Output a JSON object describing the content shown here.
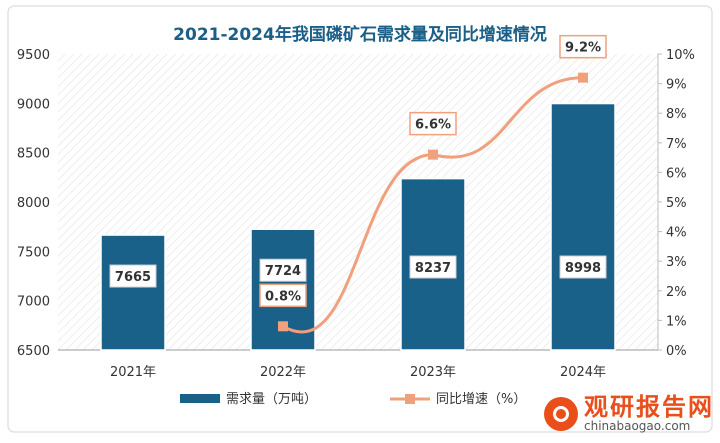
{
  "chart_data": {
    "type": "bar+line",
    "title": "2021-2024年我国磷矿石需求量及同比增速情况",
    "categories": [
      "2021年",
      "2022年",
      "2023年",
      "2024年"
    ],
    "series": [
      {
        "name": "需求量（万吨）",
        "type": "bar",
        "axis": "left",
        "values": [
          7665,
          7724,
          8237,
          8998
        ],
        "labels": [
          "7665",
          "7724",
          "8237",
          "8998"
        ]
      },
      {
        "name": "同比增速（%）",
        "type": "line",
        "axis": "right",
        "values": [
          null,
          0.8,
          6.6,
          9.2
        ],
        "labels": [
          "",
          "0.8%",
          "6.6%",
          "9.2%"
        ]
      }
    ],
    "y_left": {
      "min": 6500,
      "max": 9500,
      "ticks": [
        "6500",
        "7000",
        "7500",
        "8000",
        "8500",
        "9000",
        "9500"
      ]
    },
    "y_right": {
      "min": 0,
      "max": 10,
      "ticks": [
        "0%",
        "1%",
        "2%",
        "3%",
        "4%",
        "5%",
        "6%",
        "7%",
        "8%",
        "9%",
        "10%"
      ]
    },
    "legend_position": "bottom",
    "grid": false,
    "colors": {
      "bar": "#1a6189",
      "line": "#f0a07c",
      "title": "#1a5f88",
      "plot_bg": "#f0f0f0"
    }
  },
  "watermark": {
    "cn": "观研报告网",
    "en": "chinabaogao.com"
  }
}
